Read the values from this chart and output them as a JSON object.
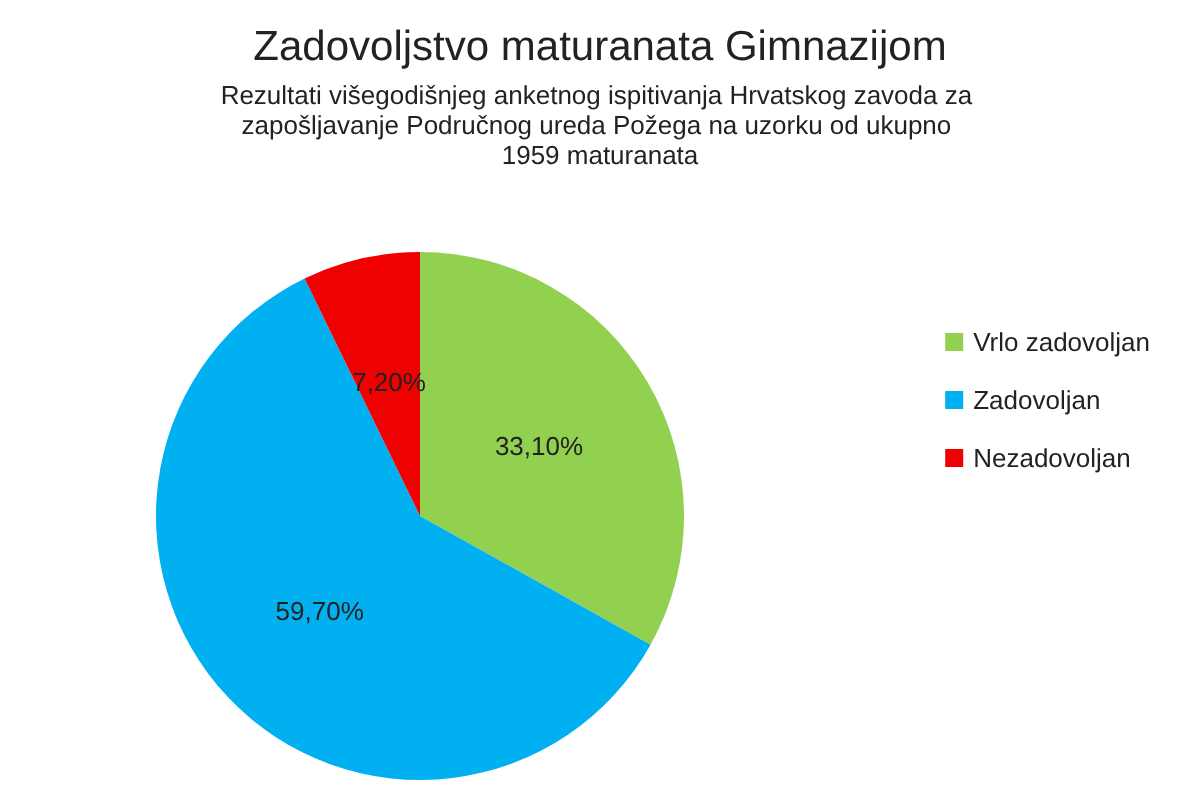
{
  "chart_data": {
    "type": "pie",
    "title": "Zadovoljstvo maturanata Gimnazijom",
    "subtitle": "Rezultati višegodišnjeg anketnog ispitivanja Hrvatskog zavoda za zapošljavanje Područnog ureda Požega na uzorku od ukupno 1959 maturanata",
    "categories": [
      "Vrlo zadovoljan",
      "Zadovoljan",
      "Nezadovoljan"
    ],
    "values": [
      33.1,
      59.7,
      7.2
    ],
    "colors": [
      "#92d050",
      "#00b0f0",
      "#f00000"
    ],
    "value_labels": [
      "33,10%",
      "59,70%",
      "7,20%"
    ],
    "legend": "right"
  }
}
